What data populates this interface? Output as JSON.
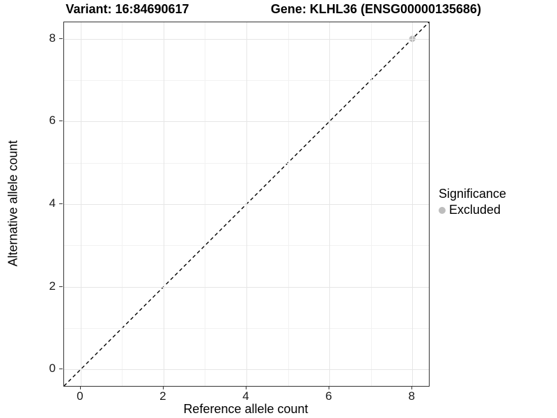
{
  "titles": {
    "variant": "Variant: 16:84690617",
    "gene": "Gene: KLHL36 (ENSG00000135686)"
  },
  "axes": {
    "x_label": "Reference allele count",
    "y_label": "Alternative allele count"
  },
  "legend": {
    "title": "Significance",
    "items": [
      {
        "label": "Excluded",
        "color": "#bdbdbd"
      }
    ]
  },
  "colors": {
    "grid_major": "#e6e6e6",
    "grid_minor": "#f2f2f2",
    "panel_border": "#333333",
    "tick": "#333333",
    "reference_line": "#000000",
    "point": "#bdbdbd"
  },
  "chart_data": {
    "type": "scatter",
    "title": "Variant: 16:84690617 / Gene: KLHL36 (ENSG00000135686)",
    "xlabel": "Reference allele count",
    "ylabel": "Alternative allele count",
    "xlim": [
      -0.4,
      8.4
    ],
    "ylim": [
      -0.4,
      8.4
    ],
    "x_ticks": [
      0,
      2,
      4,
      6,
      8
    ],
    "y_ticks": [
      0,
      2,
      4,
      6,
      8
    ],
    "x_minor_ticks": [
      1,
      3,
      5,
      7
    ],
    "y_minor_ticks": [
      1,
      3,
      5,
      7
    ],
    "grid": true,
    "legend_title": "Significance",
    "legend_position": "right",
    "series": [
      {
        "name": "Excluded",
        "color": "#bdbdbd",
        "points": [
          [
            8,
            8
          ]
        ]
      }
    ],
    "reference_line": {
      "kind": "abline",
      "slope": 1,
      "intercept": 0,
      "style": "dashed",
      "color": "#000000"
    }
  }
}
